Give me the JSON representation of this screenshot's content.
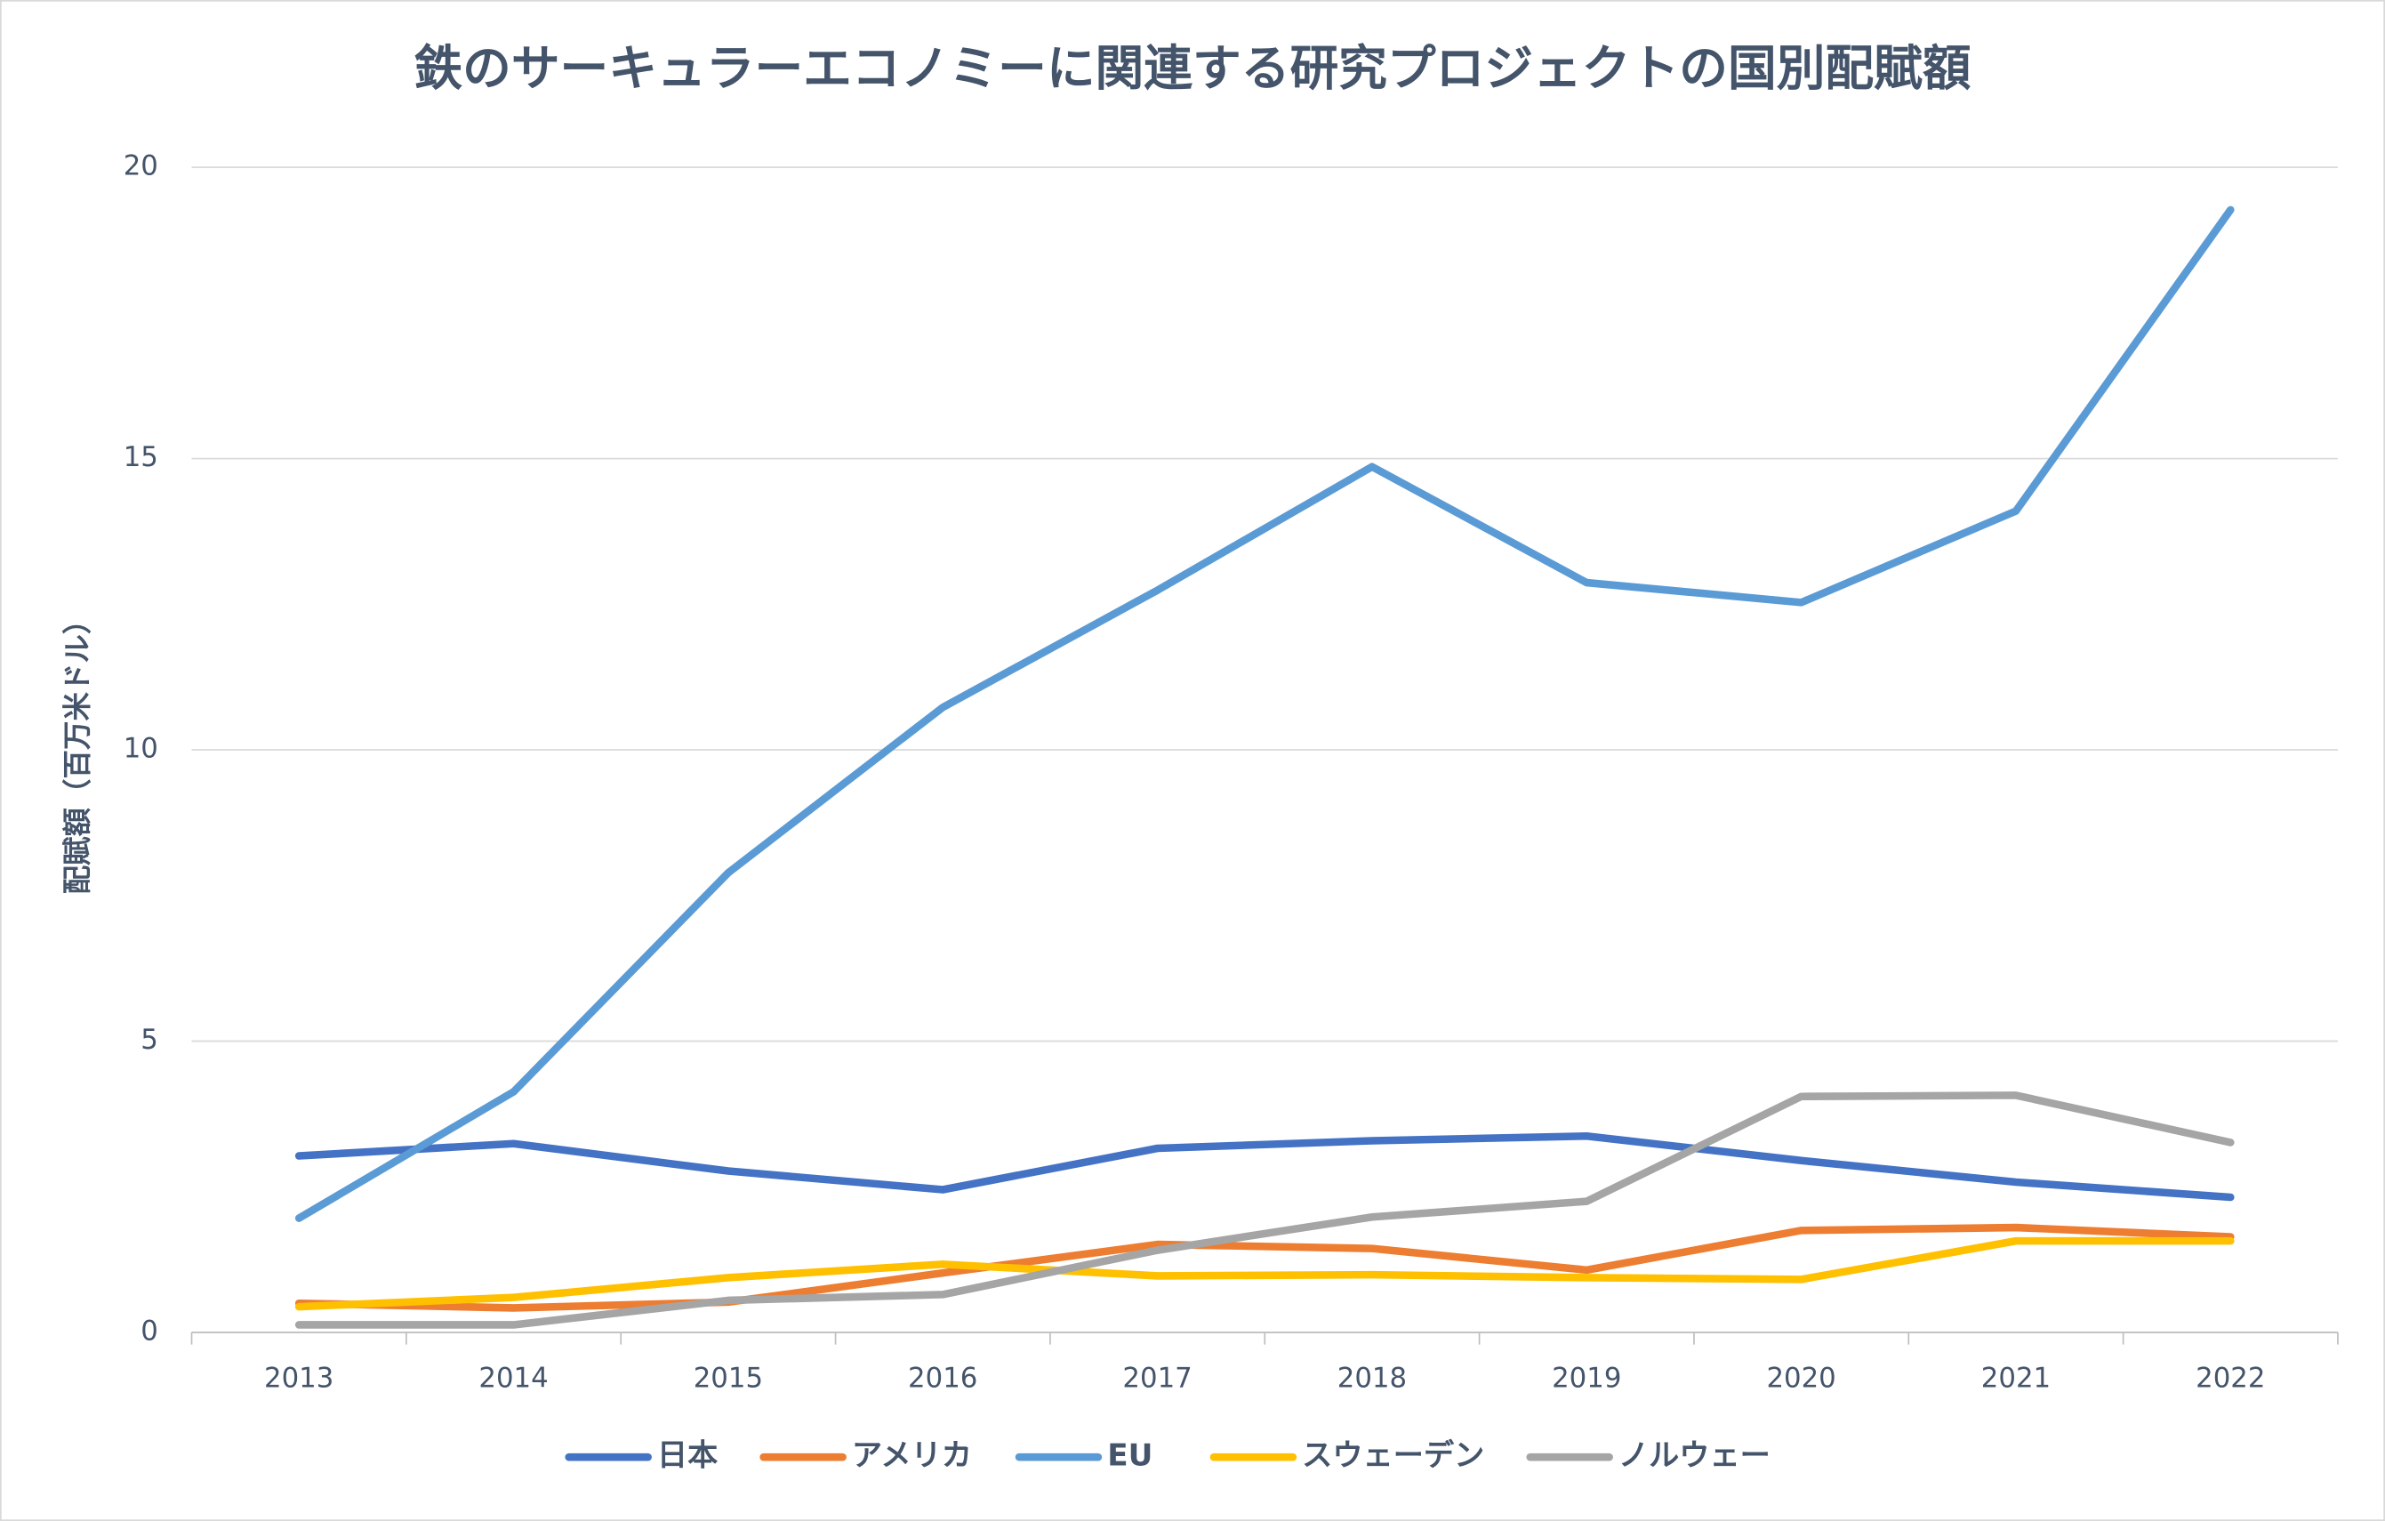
{
  "chart_data": {
    "type": "line",
    "title": "鉄のサーキュラーエコノミーに関連する研究プロジェクトの国別配賦額",
    "y_label": "配賦額（百万米ドル）",
    "categories": [
      "2013",
      "2014",
      "2015",
      "2016",
      "2017",
      "2018",
      "2019",
      "2020",
      "2021",
      "2022"
    ],
    "series": [
      {
        "name": "日本",
        "color": "#4472c4",
        "values": [
          3.03,
          3.24,
          2.77,
          2.45,
          3.16,
          3.29,
          3.37,
          2.95,
          2.58,
          2.32
        ]
      },
      {
        "name": "アメリカ",
        "color": "#ed7d31",
        "values": [
          0.5,
          0.42,
          0.52,
          1.02,
          1.51,
          1.44,
          1.07,
          1.75,
          1.8,
          1.64
        ]
      },
      {
        "name": "EU",
        "color": "#5b9bd5",
        "values": [
          1.96,
          4.13,
          7.89,
          10.73,
          12.74,
          14.86,
          12.87,
          12.53,
          14.1,
          19.27
        ]
      },
      {
        "name": "スウェーデン",
        "color": "#ffc000",
        "values": [
          0.44,
          0.6,
          0.94,
          1.17,
          0.97,
          0.99,
          0.94,
          0.91,
          1.57,
          1.57
        ]
      },
      {
        "name": "ノルウェー",
        "color": "#a5a5a5",
        "values": [
          0.13,
          0.13,
          0.55,
          0.65,
          1.41,
          1.98,
          2.25,
          4.05,
          4.07,
          3.26
        ]
      }
    ],
    "ylim": [
      0,
      20
    ],
    "yticks": [
      0,
      5,
      10,
      15,
      20
    ],
    "grid": true,
    "legend": "bottom"
  }
}
